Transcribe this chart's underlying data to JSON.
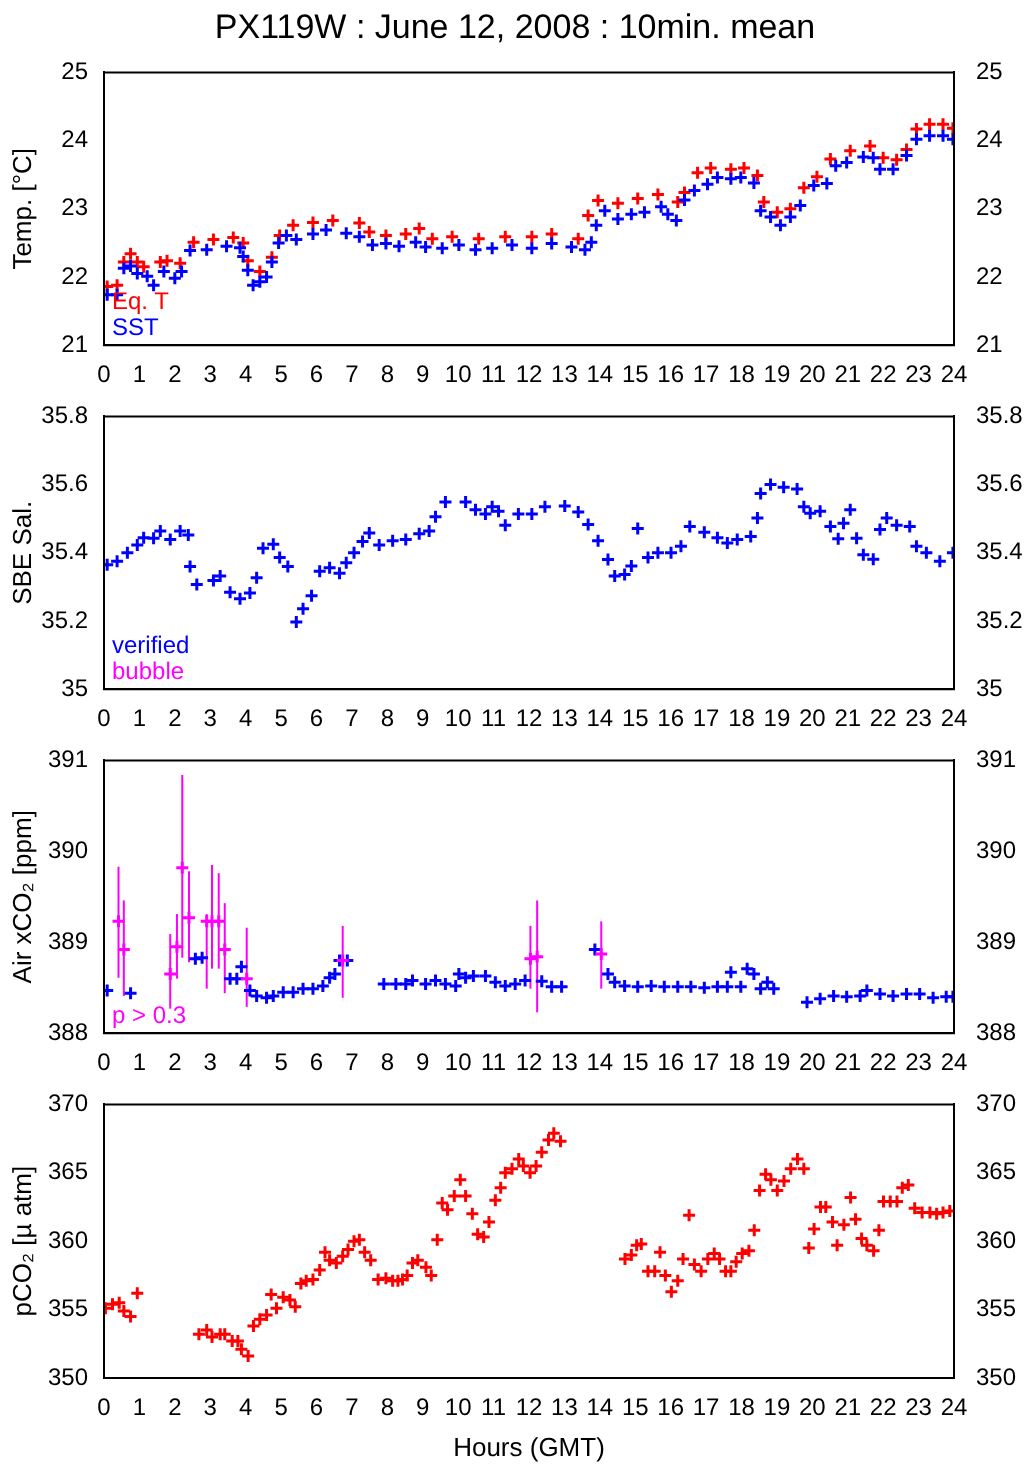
{
  "chart_data": [
    {
      "type": "scatter",
      "title": "PX119W : June 12, 2008 : 10min. mean",
      "ylabel": "Temp. [°C]",
      "xlim": [
        0,
        24
      ],
      "xticks": [
        0,
        1,
        2,
        3,
        4,
        5,
        6,
        7,
        8,
        9,
        10,
        11,
        12,
        13,
        14,
        15,
        16,
        17,
        18,
        19,
        20,
        21,
        22,
        23,
        24
      ],
      "ylim": [
        21,
        25
      ],
      "yticks": [
        21,
        22,
        23,
        24,
        25
      ],
      "y2lim": [
        21,
        25
      ],
      "y2ticks": [
        21,
        22,
        23,
        24,
        25
      ],
      "grid": false,
      "legend": "bottom left",
      "marker": "cross",
      "series": [
        {
          "name": "Eq. T",
          "color": "#ff0000",
          "x": [
            0.09,
            0.37,
            0.56,
            0.75,
            0.94,
            1.12,
            1.59,
            1.78,
            2.15,
            2.53,
            3.09,
            3.65,
            3.93,
            4.06,
            4.4,
            4.74,
            4.96,
            5.34,
            5.9,
            6.46,
            7.21,
            7.49,
            7.96,
            8.52,
            8.9,
            9.27,
            9.83,
            10.58,
            11.33,
            12.08,
            12.64,
            13.39,
            13.67,
            13.95,
            14.51,
            15.07,
            15.64,
            16.2,
            16.39,
            16.76,
            17.13,
            17.7,
            18.07,
            18.45,
            18.63,
            19.01,
            19.38,
            19.76,
            20.13,
            20.51,
            21.07,
            21.63,
            22.0,
            22.38,
            22.66,
            22.94,
            23.31,
            23.69,
            23.97
          ],
          "values": [
            21.86,
            21.88,
            22.22,
            22.34,
            22.22,
            22.15,
            22.22,
            22.24,
            22.2,
            22.51,
            22.55,
            22.58,
            22.5,
            22.24,
            22.08,
            22.29,
            22.61,
            22.76,
            22.8,
            22.83,
            22.79,
            22.66,
            22.61,
            22.63,
            22.71,
            22.56,
            22.59,
            22.56,
            22.59,
            22.59,
            22.63,
            22.56,
            22.9,
            23.12,
            23.08,
            23.15,
            23.21,
            23.1,
            23.24,
            23.53,
            23.6,
            23.58,
            23.6,
            23.49,
            23.1,
            22.95,
            23.0,
            23.31,
            23.47,
            23.73,
            23.85,
            23.92,
            23.75,
            23.72,
            23.87,
            24.17,
            24.24,
            24.24,
            24.18
          ]
        },
        {
          "name": "SST",
          "color": "#0000ff",
          "x": [
            0.09,
            0.37,
            0.56,
            0.75,
            0.94,
            1.22,
            1.4,
            1.69,
            2.0,
            2.19,
            2.43,
            2.9,
            3.46,
            3.84,
            3.93,
            4.06,
            4.21,
            4.4,
            4.59,
            4.74,
            4.93,
            5.15,
            5.43,
            5.9,
            6.27,
            6.84,
            7.21,
            7.58,
            7.96,
            8.33,
            8.8,
            9.08,
            9.55,
            10.02,
            10.49,
            10.96,
            11.52,
            12.08,
            12.64,
            13.2,
            13.58,
            13.76,
            13.9,
            14.14,
            14.51,
            14.89,
            15.26,
            15.73,
            15.92,
            16.16,
            16.39,
            16.67,
            17.04,
            17.32,
            17.7,
            17.98,
            18.35,
            18.54,
            18.82,
            19.1,
            19.38,
            19.66,
            20.04,
            20.41,
            20.66,
            20.97,
            21.44,
            21.72,
            21.91,
            22.28,
            22.66,
            22.94,
            23.31,
            23.69,
            23.97
          ],
          "values": [
            21.74,
            21.74,
            22.13,
            22.16,
            22.05,
            22.01,
            21.88,
            22.08,
            21.98,
            22.08,
            22.39,
            22.4,
            22.45,
            22.43,
            22.3,
            22.1,
            21.88,
            21.93,
            22.0,
            22.22,
            22.5,
            22.61,
            22.55,
            22.63,
            22.69,
            22.64,
            22.59,
            22.47,
            22.49,
            22.45,
            22.51,
            22.44,
            22.42,
            22.47,
            22.4,
            22.42,
            22.47,
            22.42,
            22.49,
            22.44,
            22.4,
            22.51,
            22.76,
            22.97,
            22.85,
            22.92,
            22.95,
            23.03,
            22.92,
            22.83,
            23.13,
            23.27,
            23.36,
            23.46,
            23.44,
            23.46,
            23.38,
            22.97,
            22.88,
            22.76,
            22.88,
            23.05,
            23.34,
            23.37,
            23.63,
            23.68,
            23.76,
            23.75,
            23.58,
            23.58,
            23.78,
            24.02,
            24.07,
            24.07,
            24.02
          ]
        }
      ]
    },
    {
      "type": "scatter",
      "ylabel": "SBE Sal.",
      "xlim": [
        0,
        24
      ],
      "xticks": [
        0,
        1,
        2,
        3,
        4,
        5,
        6,
        7,
        8,
        9,
        10,
        11,
        12,
        13,
        14,
        15,
        16,
        17,
        18,
        19,
        20,
        21,
        22,
        23,
        24
      ],
      "ylim": [
        35,
        35.8
      ],
      "yticks": [
        35,
        35.2,
        35.4,
        35.6,
        35.8
      ],
      "y2lim": [
        35,
        35.8
      ],
      "y2ticks": [
        35,
        35.2,
        35.4,
        35.6,
        35.8
      ],
      "grid": false,
      "legend": "bottom left",
      "marker": "cross",
      "series": [
        {
          "name": "verified",
          "color": "#0000ff",
          "x": [
            0.09,
            0.37,
            0.66,
            0.94,
            1.12,
            1.4,
            1.59,
            1.87,
            2.15,
            2.38,
            2.43,
            2.62,
            3.09,
            3.28,
            3.56,
            3.84,
            4.12,
            4.31,
            4.49,
            4.78,
            4.96,
            5.19,
            5.43,
            5.62,
            5.86,
            6.09,
            6.37,
            6.65,
            6.84,
            7.06,
            7.3,
            7.49,
            7.77,
            8.15,
            8.52,
            8.9,
            9.18,
            9.36,
            9.64,
            10.21,
            10.49,
            10.77,
            10.96,
            11.14,
            11.33,
            11.7,
            12.08,
            12.45,
            13.01,
            13.39,
            13.67,
            13.95,
            14.23,
            14.42,
            14.7,
            14.89,
            15.07,
            15.36,
            15.64,
            16.01,
            16.29,
            16.54,
            16.95,
            17.32,
            17.6,
            17.88,
            18.26,
            18.45,
            18.54,
            18.82,
            19.19,
            19.57,
            19.76,
            19.94,
            20.22,
            20.51,
            20.73,
            20.88,
            21.07,
            21.25,
            21.44,
            21.72,
            21.91,
            22.1,
            22.38,
            22.75,
            22.94,
            23.22,
            23.6,
            23.97
          ],
          "values": [
            35.365,
            35.375,
            35.4,
            35.423,
            35.444,
            35.443,
            35.464,
            35.439,
            35.464,
            35.452,
            35.36,
            35.307,
            35.319,
            35.332,
            35.284,
            35.265,
            35.282,
            35.327,
            35.413,
            35.425,
            35.386,
            35.36,
            35.197,
            35.236,
            35.274,
            35.346,
            35.356,
            35.34,
            35.371,
            35.4,
            35.433,
            35.458,
            35.423,
            35.435,
            35.439,
            35.456,
            35.464,
            35.506,
            35.549,
            35.549,
            35.526,
            35.514,
            35.535,
            35.522,
            35.481,
            35.514,
            35.514,
            35.535,
            35.537,
            35.52,
            35.483,
            35.435,
            35.38,
            35.332,
            35.336,
            35.361,
            35.471,
            35.386,
            35.4,
            35.4,
            35.419,
            35.477,
            35.46,
            35.444,
            35.429,
            35.439,
            35.448,
            35.502,
            35.574,
            35.6,
            35.592,
            35.587,
            35.535,
            35.516,
            35.522,
            35.477,
            35.441,
            35.487,
            35.526,
            35.443,
            35.394,
            35.381,
            35.468,
            35.502,
            35.481,
            35.477,
            35.419,
            35.4,
            35.375,
            35.4
          ]
        },
        {
          "name": "bubble",
          "color": "#ff00ff"
        }
      ]
    },
    {
      "type": "scatter",
      "ylabel": "Air xCO₂ [ppm]",
      "xlim": [
        0,
        24
      ],
      "xticks": [
        0,
        1,
        2,
        3,
        4,
        5,
        6,
        7,
        8,
        9,
        10,
        11,
        12,
        13,
        14,
        15,
        16,
        17,
        18,
        19,
        20,
        21,
        22,
        23,
        24
      ],
      "ylim": [
        388,
        391
      ],
      "yticks": [
        388,
        389,
        390,
        391
      ],
      "y2lim": [
        388,
        391
      ],
      "y2ticks": [
        388,
        389,
        390,
        391
      ],
      "grid": false,
      "legend": "bottom left",
      "marker": "cross",
      "series": [
        {
          "color": "#0000ff",
          "x": [
            0.09,
            0.75,
            2.58,
            2.77,
            3.56,
            3.75,
            3.88,
            4.12,
            4.31,
            4.59,
            4.78,
            5.06,
            5.34,
            5.62,
            5.9,
            6.18,
            6.37,
            6.52,
            6.65,
            6.87,
            7.9,
            8.24,
            8.52,
            8.71,
            9.08,
            9.36,
            9.64,
            9.93,
            10.02,
            10.21,
            10.43,
            10.77,
            11.05,
            11.33,
            11.61,
            11.89,
            12.36,
            12.64,
            12.92,
            13.86,
            14.23,
            14.42,
            14.7,
            15.07,
            15.45,
            15.82,
            16.2,
            16.57,
            16.95,
            17.32,
            17.6,
            17.7,
            17.98,
            18.16,
            18.35,
            18.54,
            18.73,
            18.91,
            19.85,
            20.22,
            20.6,
            20.97,
            21.35,
            21.54,
            21.91,
            22.28,
            22.66,
            23.03,
            23.41,
            23.78,
            23.97
          ],
          "values": [
            388.47,
            388.44,
            388.82,
            388.83,
            388.6,
            388.6,
            388.73,
            388.47,
            388.41,
            388.39,
            388.41,
            388.45,
            388.45,
            388.49,
            388.49,
            388.52,
            388.61,
            388.65,
            388.8,
            388.8,
            388.54,
            388.54,
            388.54,
            388.58,
            388.54,
            388.58,
            388.54,
            388.52,
            388.65,
            388.61,
            388.63,
            388.63,
            388.56,
            388.52,
            388.54,
            388.58,
            388.57,
            388.51,
            388.51,
            388.92,
            388.65,
            388.56,
            388.52,
            388.51,
            388.52,
            388.51,
            388.51,
            388.51,
            388.5,
            388.51,
            388.51,
            388.67,
            388.51,
            388.71,
            388.65,
            388.49,
            388.56,
            388.49,
            388.34,
            388.38,
            388.41,
            388.4,
            388.41,
            388.47,
            388.43,
            388.41,
            388.43,
            388.43,
            388.39,
            388.4,
            388.4
          ]
        },
        {
          "name": "p > 0.3",
          "color": "#ff00ff",
          "x": [
            0.41,
            0.56,
            1.87,
            2.06,
            2.21,
            2.4,
            2.9,
            3.05,
            3.24,
            3.41,
            4.03,
            6.74,
            12.04,
            12.23,
            14.04
          ],
          "values": [
            389.23,
            388.92,
            388.65,
            388.95,
            389.82,
            389.27,
            389.23,
            389.23,
            389.23,
            388.92,
            388.6,
            388.8,
            388.82,
            388.84,
            388.87
          ],
          "errors": [
            [
              388.61,
              389.83
            ],
            [
              388.41,
              389.46
            ],
            [
              388.27,
              389.09
            ],
            [
              388.6,
              389.31
            ],
            [
              388.83,
              390.84
            ],
            [
              388.78,
              389.78
            ],
            [
              388.49,
              389.31
            ],
            [
              388.71,
              389.85
            ],
            [
              388.71,
              389.76
            ],
            [
              388.44,
              389.43
            ],
            [
              388.29,
              389.16
            ],
            [
              388.39,
              389.18
            ],
            [
              388.49,
              389.18
            ],
            [
              388.23,
              389.46
            ],
            [
              388.49,
              389.23
            ]
          ]
        }
      ]
    },
    {
      "type": "scatter",
      "ylabel": "pCO₂ [µ atm]",
      "xlabel": "Hours (GMT)",
      "xlim": [
        0,
        24
      ],
      "xticks": [
        0,
        1,
        2,
        3,
        4,
        5,
        6,
        7,
        8,
        9,
        10,
        11,
        12,
        13,
        14,
        15,
        16,
        17,
        18,
        19,
        20,
        21,
        22,
        23,
        24
      ],
      "ylim": [
        350,
        370
      ],
      "yticks": [
        350,
        355,
        360,
        365,
        370
      ],
      "y2lim": [
        350,
        370
      ],
      "y2ticks": [
        350,
        355,
        360,
        365,
        370
      ],
      "grid": false,
      "marker": "cross",
      "series": [
        {
          "color": "#ff0000",
          "x": [
            0.04,
            0.24,
            0.43,
            0.56,
            0.75,
            0.94,
            2.68,
            2.9,
            3.05,
            3.28,
            3.41,
            3.62,
            3.78,
            3.88,
            4.07,
            4.22,
            4.4,
            4.59,
            4.72,
            4.87,
            5.06,
            5.25,
            5.4,
            5.56,
            5.71,
            5.9,
            6.09,
            6.24,
            6.37,
            6.56,
            6.74,
            6.89,
            7.06,
            7.21,
            7.36,
            7.53,
            7.74,
            7.96,
            8.15,
            8.3,
            8.43,
            8.56,
            8.71,
            8.86,
            9.09,
            9.24,
            9.41,
            9.55,
            9.7,
            9.89,
            10.06,
            10.21,
            10.4,
            10.55,
            10.72,
            10.87,
            11.05,
            11.2,
            11.33,
            11.52,
            11.71,
            11.84,
            12.03,
            12.2,
            12.36,
            12.55,
            12.7,
            12.89,
            14.71,
            14.89,
            15.04,
            15.17,
            15.36,
            15.55,
            15.7,
            15.85,
            16.02,
            16.2,
            16.35,
            16.52,
            16.67,
            16.86,
            17.05,
            17.23,
            17.38,
            17.55,
            17.7,
            17.85,
            18.02,
            18.21,
            18.36,
            18.51,
            18.68,
            18.83,
            19.01,
            19.2,
            19.39,
            19.58,
            19.76,
            19.9,
            20.05,
            20.23,
            20.38,
            20.57,
            20.7,
            20.89,
            21.08,
            21.22,
            21.39,
            21.54,
            21.73,
            21.88,
            22.01,
            22.2,
            22.39,
            22.54,
            22.71,
            22.89,
            23.1,
            23.32,
            23.51,
            23.69,
            23.88
          ],
          "values": [
            355.1,
            355.4,
            355.5,
            354.9,
            354.5,
            356.2,
            353.2,
            353.5,
            353.0,
            353.2,
            353.2,
            352.7,
            352.7,
            352.1,
            351.6,
            353.8,
            354.3,
            354.6,
            356.1,
            355.1,
            355.9,
            355.7,
            355.2,
            356.9,
            357.1,
            357.2,
            357.9,
            359.2,
            358.6,
            358.4,
            358.9,
            359.4,
            360.0,
            360.1,
            359.2,
            358.6,
            357.2,
            357.3,
            357.1,
            357.1,
            357.2,
            357.5,
            358.4,
            358.6,
            358.1,
            357.5,
            360.1,
            362.8,
            362.3,
            363.3,
            364.5,
            363.3,
            362.0,
            360.5,
            360.3,
            361.4,
            363.0,
            363.9,
            365.0,
            365.3,
            366.0,
            365.5,
            365.0,
            365.5,
            366.5,
            367.4,
            367.9,
            367.3,
            358.7,
            359.0,
            359.7,
            359.8,
            357.8,
            357.8,
            359.2,
            357.5,
            356.3,
            357.1,
            358.7,
            361.9,
            358.3,
            357.8,
            358.7,
            359.1,
            358.7,
            357.8,
            357.8,
            358.5,
            359.1,
            359.3,
            360.8,
            363.7,
            364.9,
            364.5,
            363.7,
            364.4,
            365.3,
            366.0,
            365.3,
            359.5,
            360.9,
            362.5,
            362.5,
            361.4,
            359.7,
            361.2,
            363.2,
            361.6,
            360.2,
            359.7,
            359.3,
            360.8,
            362.9,
            362.9,
            362.9,
            363.9,
            364.1,
            362.4,
            362.1,
            362.1,
            362.0,
            362.1,
            362.2
          ]
        }
      ]
    }
  ]
}
